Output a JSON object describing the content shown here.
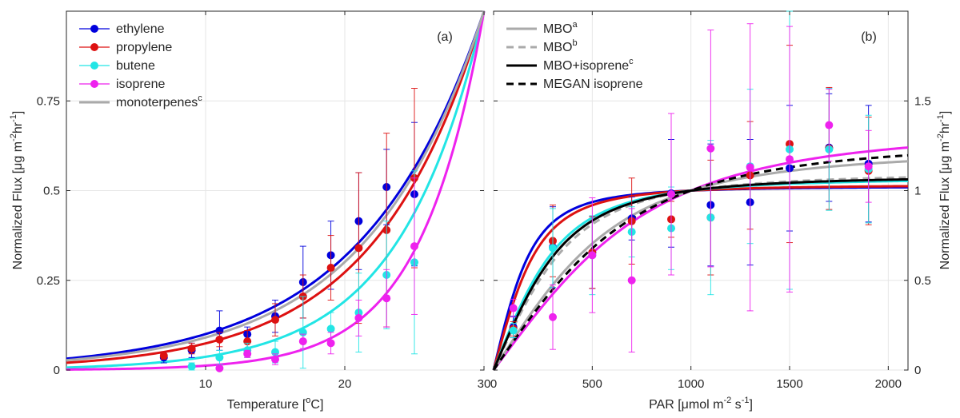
{
  "chart_data": [
    {
      "type": "scatter",
      "panel_label": "(a)",
      "xlabel_main": "Temperature [",
      "xlabel_sup": "o",
      "xlabel_end": "C]",
      "ylabel_parts": [
        "Normalized Flux [",
        "μ",
        "g m",
        "-2",
        "hr",
        "-1",
        "]"
      ],
      "xlim": [
        0,
        30
      ],
      "ylim": [
        0,
        1
      ],
      "xticks": [
        10,
        20,
        30
      ],
      "yticks": [
        0,
        0.25,
        0.5,
        0.75
      ],
      "ytick_labels": [
        "0",
        "0.25",
        "0.5",
        "0.75"
      ],
      "legend_position": "top-left",
      "legend": [
        {
          "name": "ethylene",
          "style": "marker-line",
          "color": "#0000dd"
        },
        {
          "name": "propylene",
          "style": "marker-line",
          "color": "#dd1111"
        },
        {
          "name": "butene",
          "style": "marker-line",
          "color": "#22e5e5"
        },
        {
          "name": "isoprene",
          "style": "marker-line",
          "color": "#ee22ee"
        },
        {
          "name": "monoterpenes",
          "sup": "c",
          "style": "line",
          "color": "#aaaaaa"
        }
      ],
      "curves": [
        {
          "name": "ethylene",
          "color": "#0000dd",
          "beta": 0.115
        },
        {
          "name": "propylene",
          "color": "#dd1111",
          "beta": 0.13
        },
        {
          "name": "butene",
          "color": "#22e5e5",
          "beta": 0.165
        },
        {
          "name": "isoprene",
          "color": "#ee22ee",
          "beta": 0.22
        },
        {
          "name": "monoterpenes",
          "color": "#aaaaaa",
          "beta": 0.12
        }
      ],
      "series": [
        {
          "name": "ethylene",
          "color": "#0000dd",
          "x": [
            7,
            9,
            11,
            13,
            15,
            17,
            19,
            21,
            23,
            25
          ],
          "y": [
            0.035,
            0.055,
            0.11,
            0.1,
            0.15,
            0.245,
            0.32,
            0.415,
            0.51,
            0.49
          ],
          "err": [
            0.015,
            0.02,
            0.055,
            0.02,
            0.045,
            0.1,
            0.095,
            0.135,
            0.105,
            0.2
          ]
        },
        {
          "name": "propylene",
          "color": "#dd1111",
          "x": [
            7,
            9,
            11,
            13,
            15,
            17,
            19,
            21,
            23,
            25
          ],
          "y": [
            0.04,
            0.06,
            0.085,
            0.08,
            0.14,
            0.205,
            0.285,
            0.34,
            0.39,
            0.535
          ],
          "err": [
            0.01,
            0.015,
            0.02,
            0.03,
            0.045,
            0.06,
            0.09,
            0.21,
            0.27,
            0.25
          ]
        },
        {
          "name": "butene",
          "color": "#22e5e5",
          "x": [
            9,
            11,
            13,
            15,
            17,
            19,
            21,
            23,
            25
          ],
          "y": [
            0.01,
            0.035,
            0.055,
            0.05,
            0.105,
            0.115,
            0.16,
            0.265,
            0.3
          ],
          "err": [
            0.01,
            0.02,
            0.02,
            0.03,
            0.1,
            0.045,
            0.11,
            0.15,
            0.255
          ]
        },
        {
          "name": "isoprene",
          "color": "#ee22ee",
          "x": [
            11,
            13,
            15,
            17,
            19,
            21,
            23,
            25
          ],
          "y": [
            0.005,
            0.045,
            0.03,
            0.08,
            0.075,
            0.145,
            0.2,
            0.345
          ],
          "err": [
            0.005,
            0.01,
            0.015,
            0.02,
            0.03,
            0.05,
            0.08,
            0.19
          ]
        }
      ]
    },
    {
      "type": "scatter",
      "panel_label": "(b)",
      "xlabel_parts": [
        "PAR [",
        "μ",
        "mol m",
        "-2",
        " s",
        "-1",
        "]"
      ],
      "ylabel_parts": [
        "Normalized Flux [",
        "μ",
        "g m",
        "-2",
        "hr",
        "-1",
        "]"
      ],
      "xlim": [
        0,
        2100
      ],
      "ylim": [
        0,
        2
      ],
      "xticks": [
        0,
        500,
        1000,
        1500,
        2000
      ],
      "yticks": [
        0,
        0.5,
        1,
        1.5
      ],
      "ytick_labels": [
        "0",
        "0.5",
        "1",
        "1.5"
      ],
      "y_axis_side": "right",
      "legend_position": "top-left",
      "legend": [
        {
          "name": "MBO",
          "sup": "a",
          "style": "solid",
          "color": "#aaaaaa"
        },
        {
          "name": "MBO",
          "sup": "b",
          "style": "dashed",
          "color": "#aaaaaa"
        },
        {
          "name": "MBO+isoprene",
          "sup": "c",
          "style": "solid",
          "color": "#000000"
        },
        {
          "name": "MEGAN isoprene",
          "sup": "",
          "style": "dashed",
          "color": "#000000"
        }
      ],
      "curves": [
        {
          "name": "ethylene",
          "color": "#0000dd",
          "alpha": 0.0045,
          "c": 1.0,
          "dash": false
        },
        {
          "name": "propylene",
          "color": "#dd1111",
          "alpha": 0.0039,
          "c": 1.0,
          "dash": false
        },
        {
          "name": "butene",
          "color": "#22e5e5",
          "alpha": 0.0026,
          "c": 1.0,
          "dash": false
        },
        {
          "name": "isoprene",
          "color": "#ee22ee",
          "alpha": 0.0011,
          "c": 1.0,
          "dash": false
        },
        {
          "name": "MBO a",
          "color": "#aaaaaa",
          "alpha": 0.0014,
          "c": 1.0,
          "dash": false
        },
        {
          "name": "MBO b",
          "color": "#aaaaaa",
          "alpha": 0.0022,
          "c": 1.0,
          "dash": true
        },
        {
          "name": "MBO+isoprene c",
          "color": "#000000",
          "alpha": 0.0024,
          "c": 1.0,
          "dash": false
        },
        {
          "name": "MEGAN isoprene",
          "color": "#000000",
          "alpha": 0.00125,
          "c": 1.0,
          "dash": true
        }
      ],
      "series": [
        {
          "name": "ethylene",
          "color": "#0000dd",
          "x": [
            100,
            300,
            500,
            700,
            900,
            1100,
            1300,
            1500,
            1700,
            1900
          ],
          "y": [
            0.24,
            0.685,
            0.655,
            0.845,
            0.985,
            0.92,
            0.935,
            1.125,
            1.24,
            1.15
          ],
          "err": [
            0.06,
            0.225,
            0.2,
            0.12,
            0.3,
            0.34,
            0.35,
            0.35,
            0.3,
            0.325
          ]
        },
        {
          "name": "propylene",
          "color": "#dd1111",
          "x": [
            100,
            300,
            500,
            700,
            900,
            1100,
            1300,
            1500,
            1700,
            1900
          ],
          "y": [
            0.23,
            0.72,
            0.655,
            0.83,
            0.84,
            0.85,
            1.085,
            1.26,
            1.235,
            1.11
          ],
          "err": [
            0.04,
            0.2,
            0.2,
            0.24,
            0.1,
            0.32,
            0.3,
            0.55,
            0.34,
            0.3
          ]
        },
        {
          "name": "butene",
          "color": "#22e5e5",
          "x": [
            100,
            300,
            500,
            700,
            900,
            1100,
            1300,
            1500,
            1700,
            1900
          ],
          "y": [
            0.22,
            0.68,
            0.64,
            0.77,
            0.79,
            0.85,
            1.135,
            1.23,
            1.23,
            1.12
          ],
          "err": [
            0.04,
            0.22,
            0.22,
            0.14,
            0.23,
            0.43,
            0.43,
            0.78,
            0.34,
            0.3
          ]
        },
        {
          "name": "isoprene",
          "color": "#ee22ee",
          "x": [
            100,
            300,
            500,
            700,
            900,
            1100,
            1300,
            1500,
            1700,
            1900
          ],
          "y": [
            0.345,
            0.295,
            0.64,
            0.5,
            0.98,
            1.235,
            1.13,
            1.175,
            1.365,
            1.135
          ],
          "err": [
            0.05,
            0.18,
            0.32,
            0.4,
            0.45,
            0.66,
            0.8,
            0.74,
            0.2,
            0.2
          ]
        }
      ]
    }
  ]
}
